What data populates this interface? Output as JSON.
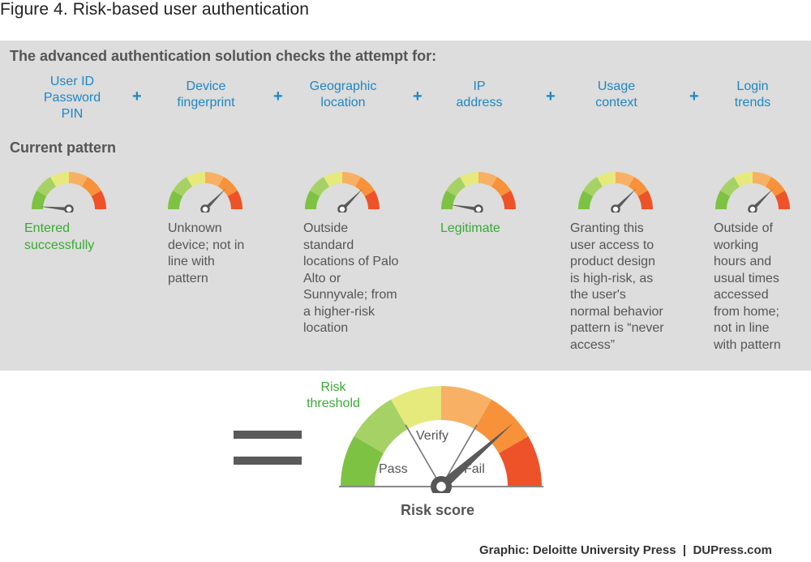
{
  "figure_title": "Figure 4. Risk-based user authentication",
  "panel_heading": "The advanced authentication solution checks the attempt for:",
  "factors": [
    [
      "User ID",
      "Password",
      "PIN"
    ],
    [
      "Device",
      "fingerprint"
    ],
    [
      "Geographic",
      "location"
    ],
    [
      "IP",
      "address"
    ],
    [
      "Usage",
      "context"
    ],
    [
      "Login",
      "trends"
    ]
  ],
  "plus_sign": "+",
  "pattern_heading": "Current pattern",
  "patterns": [
    {
      "lines": [
        "Entered",
        "successfully"
      ],
      "status": "good",
      "needle_level": 0.03
    },
    {
      "lines": [
        "Unknown",
        "device; not in",
        "line with",
        "pattern"
      ],
      "status": "neutral",
      "needle_level": 0.75
    },
    {
      "lines": [
        "Outside",
        "standard",
        "locations of Palo",
        "Alto or",
        "Sunnyvale; from",
        "a higher-risk",
        "location"
      ],
      "status": "neutral",
      "needle_level": 0.75
    },
    {
      "lines": [
        "Legitimate"
      ],
      "status": "good",
      "needle_level": 0.05
    },
    {
      "lines": [
        "Granting this",
        "user access to",
        "product design",
        "is high-risk, as",
        "the user's",
        "normal behavior",
        "pattern is “never",
        "access”"
      ],
      "status": "neutral",
      "needle_level": 0.75
    },
    {
      "lines": [
        "Outside of",
        "working",
        "hours and",
        "usual times",
        "accessed",
        "from home;",
        "not in line",
        "with pattern"
      ],
      "status": "neutral",
      "needle_level": 0.75
    }
  ],
  "summary_gauge": {
    "threshold_label": [
      "Risk",
      "threshold"
    ],
    "zones": {
      "pass": "Pass",
      "verify": "Verify",
      "fail": "Fail"
    },
    "caption": "Risk score",
    "needle_level": 0.77
  },
  "credit": "Graphic: Deloitte University Press  |  DUPress.com",
  "colors": {
    "factor_text": "#1f86c4",
    "good_text": "#3aa935",
    "panel_bg": "#dcdddc",
    "gauge_segments": [
      "#7dc242",
      "#a6d164",
      "#e6ea7d",
      "#f8b065",
      "#f7923a",
      "#ee5228"
    ]
  }
}
